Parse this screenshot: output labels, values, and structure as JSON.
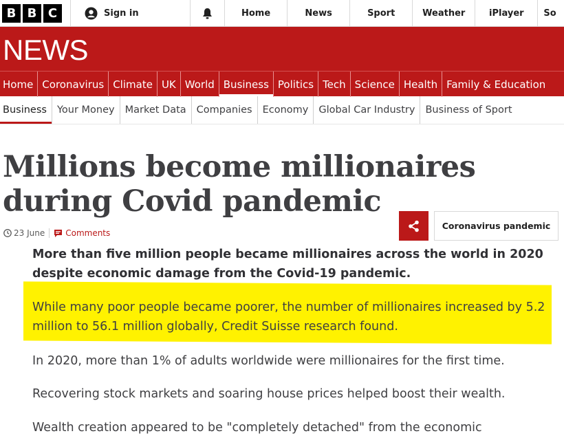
{
  "logo": {
    "letters": [
      "B",
      "B",
      "C"
    ]
  },
  "topnav": {
    "signin": "Sign in",
    "items": [
      "Home",
      "News",
      "Sport",
      "Weather",
      "iPlayer",
      "So"
    ]
  },
  "brand": {
    "title": "NEWS"
  },
  "sections": [
    "Home",
    "Coronavirus",
    "Climate",
    "UK",
    "World",
    "Business",
    "Politics",
    "Tech",
    "Science",
    "Health",
    "Family & Education"
  ],
  "subnav": [
    "Business",
    "Your Money",
    "Market Data",
    "Companies",
    "Economy",
    "Global Car Industry",
    "Business of Sport"
  ],
  "article": {
    "headline": "Millions become millionaires during Covid pandemic",
    "date": "23 June",
    "comments": "Comments",
    "tag": "Coronavirus pandemic",
    "lead": "More than five million people became millionaires across the world in 2020 despite economic damage from the Covid-19 pandemic.",
    "paragraphs": [
      "While many poor people became poorer, the number of millionaires increased by 5.2 million to 56.1 million globally, Credit Suisse research found.",
      "In 2020, more than 1% of adults worldwide were millionaires for the first time.",
      "Recovering stock markets and soaring house prices helped boost their wealth.",
      "Wealth creation appeared to be \"completely detached\" from the economic"
    ]
  },
  "colors": {
    "brand_red": "#bb1919",
    "highlight": "#fff200"
  }
}
